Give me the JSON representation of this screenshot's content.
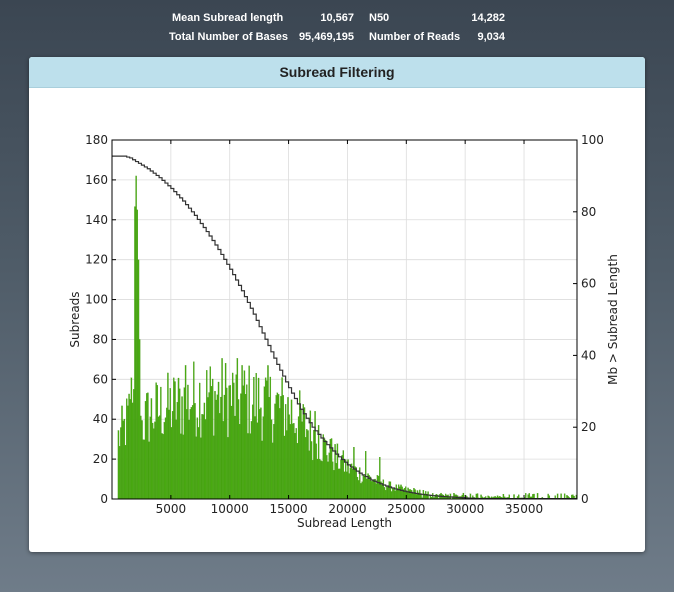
{
  "stats": {
    "mean_label": "Mean Subread length",
    "mean_value": "10,567",
    "n50_label": "N50",
    "n50_value": "14,282",
    "bases_label": "Total Number of Bases",
    "bases_value": "95,469,195",
    "reads_label": "Number of Reads",
    "reads_value": "9,034"
  },
  "panel": {
    "title": "Subread Filtering"
  },
  "colors": {
    "bars": "#4aac12",
    "bar_edge": "#3a8a0c",
    "line": "#333333",
    "header": "#bde0ec"
  },
  "chart_data": {
    "type": "bar",
    "xlabel": "Subread Length",
    "ylabel": "Subreads",
    "y2label": "Mb > Subread Length",
    "xlim": [
      0,
      39500
    ],
    "ylim": [
      0,
      180
    ],
    "y2lim": [
      0,
      100
    ],
    "xticks": [
      "5000",
      "10000",
      "15000",
      "20000",
      "25000",
      "30000",
      "35000"
    ],
    "yticks": [
      "0",
      "20",
      "40",
      "60",
      "80",
      "100",
      "120",
      "140",
      "160",
      "180"
    ],
    "y2ticks": [
      "0",
      "20",
      "40",
      "60",
      "80",
      "100"
    ],
    "grid": true,
    "bin_width": 100,
    "histogram_profile": [
      [
        0,
        30
      ],
      [
        500,
        33
      ],
      [
        1000,
        38
      ],
      [
        1400,
        45
      ],
      [
        1700,
        60
      ],
      [
        2000,
        162
      ],
      [
        2200,
        100
      ],
      [
        2500,
        40
      ],
      [
        3000,
        45
      ],
      [
        4000,
        48
      ],
      [
        5000,
        50
      ],
      [
        6000,
        52
      ],
      [
        7000,
        55
      ],
      [
        8000,
        56
      ],
      [
        9000,
        56
      ],
      [
        10000,
        55
      ],
      [
        11000,
        54
      ],
      [
        12000,
        53
      ],
      [
        13000,
        52
      ],
      [
        14000,
        50
      ],
      [
        15000,
        48
      ],
      [
        16000,
        42
      ],
      [
        17000,
        35
      ],
      [
        18000,
        28
      ],
      [
        19000,
        22
      ],
      [
        20000,
        17
      ],
      [
        21000,
        14
      ],
      [
        22000,
        11
      ],
      [
        23000,
        8
      ],
      [
        24000,
        6
      ],
      [
        25000,
        5
      ],
      [
        26000,
        4
      ],
      [
        27000,
        3
      ],
      [
        28000,
        2
      ],
      [
        29000,
        2
      ],
      [
        30000,
        1
      ],
      [
        32000,
        1
      ],
      [
        35000,
        0.5
      ],
      [
        39500,
        0.3
      ]
    ],
    "spikes": [
      [
        1500,
        50
      ],
      [
        1800,
        55
      ],
      [
        2000,
        162
      ],
      [
        2100,
        145
      ],
      [
        2200,
        120
      ],
      [
        2300,
        80
      ],
      [
        6200,
        67
      ],
      [
        11000,
        67
      ],
      [
        17200,
        44
      ],
      [
        17500,
        37
      ],
      [
        18500,
        30
      ],
      [
        19500,
        22
      ],
      [
        20500,
        26
      ],
      [
        21500,
        24
      ],
      [
        22700,
        21
      ]
    ],
    "cumulative_line": {
      "x": [
        0,
        1000,
        1500,
        2000,
        2500,
        3000,
        4000,
        5000,
        6000,
        7000,
        8000,
        9000,
        10000,
        11000,
        12000,
        13000,
        14000,
        15000,
        16000,
        17000,
        18000,
        19000,
        20000,
        21000,
        22000,
        23000,
        24000,
        25000,
        26000,
        27000,
        28000,
        29000,
        30000,
        31000,
        39500
      ],
      "y": [
        95.5,
        95.5,
        95,
        94,
        93,
        92,
        89.5,
        86.5,
        83,
        79,
        74.5,
        69.5,
        64,
        58,
        51.5,
        44.5,
        37.5,
        31,
        25,
        20,
        16,
        12.5,
        9.5,
        7.2,
        5.3,
        3.9,
        2.8,
        2.0,
        1.4,
        1.0,
        0.7,
        0.5,
        0.3,
        0.1,
        0.1
      ]
    }
  }
}
